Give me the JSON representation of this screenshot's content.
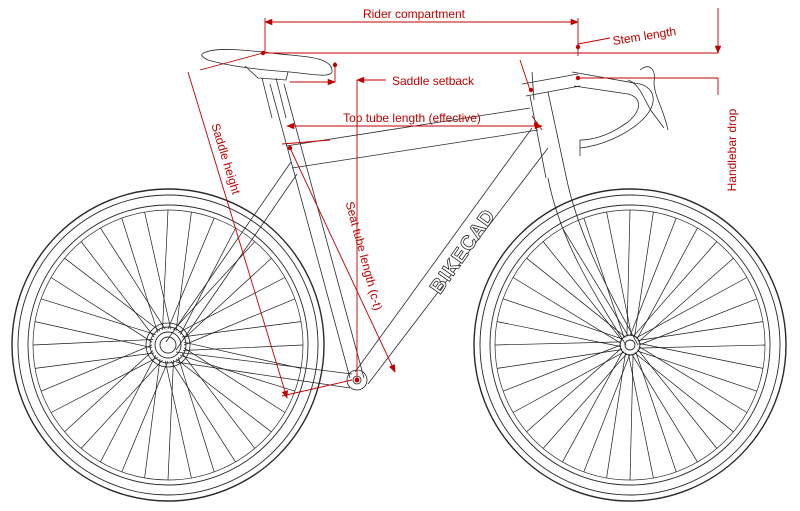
{
  "brand": {
    "text": "BIKECAD"
  },
  "dimensions": {
    "rider_compartment": "Rider compartment",
    "stem_length": "Stem length",
    "saddle_setback": "Saddle setback",
    "top_tube_length": "Top tube length (effective)",
    "handlebar_drop": "Handlebar drop",
    "saddle_height": "Saddle height",
    "seat_tube_length": "Seat tube length (c-t)"
  },
  "wheels": {
    "spoke_count": 36
  },
  "colors": {
    "dimension": "#c00000",
    "frame": "#2a2a2a"
  }
}
